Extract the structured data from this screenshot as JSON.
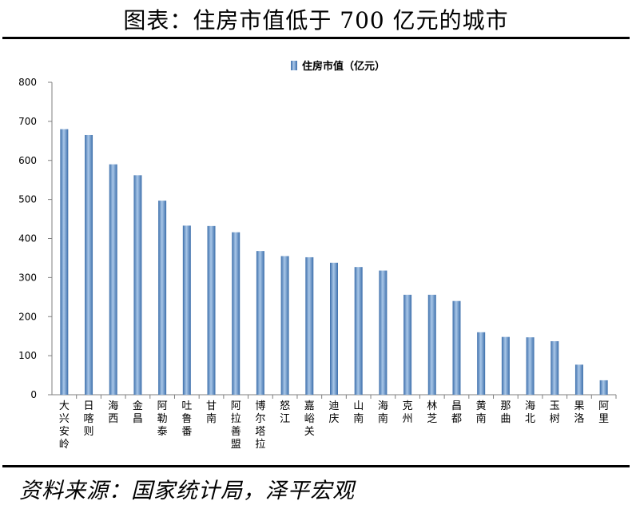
{
  "title": "图表：住房市值低于 700 亿元的城市",
  "source": "资料来源：国家统计局，泽平宏观",
  "colors": {
    "bar_light": "#a9c7e8",
    "bar_mid": "#5d8fc9",
    "bar_dark": "#3d6fab",
    "axis": "#7f7f7f"
  },
  "chart_data": {
    "type": "bar",
    "categories": [
      "大兴安岭",
      "日喀则",
      "海西",
      "金昌",
      "阿勒泰",
      "吐鲁番",
      "甘南",
      "阿拉善盟",
      "博尔塔拉",
      "怒江",
      "嘉峪关",
      "迪庆",
      "山南",
      "海南",
      "克州",
      "林芝",
      "昌都",
      "黄南",
      "那曲",
      "海北",
      "玉树",
      "果洛",
      "阿里"
    ],
    "series": [
      {
        "name": "住房市值（亿元）",
        "values": [
          680,
          665,
          590,
          562,
          497,
          433,
          432,
          416,
          368,
          355,
          352,
          338,
          327,
          318,
          256,
          256,
          240,
          160,
          148,
          147,
          137,
          77,
          37
        ]
      }
    ],
    "yticks": [
      0,
      100,
      200,
      300,
      400,
      500,
      600,
      700,
      800
    ],
    "ylim": [
      0,
      800
    ],
    "grid": false,
    "legend_position": "top"
  }
}
